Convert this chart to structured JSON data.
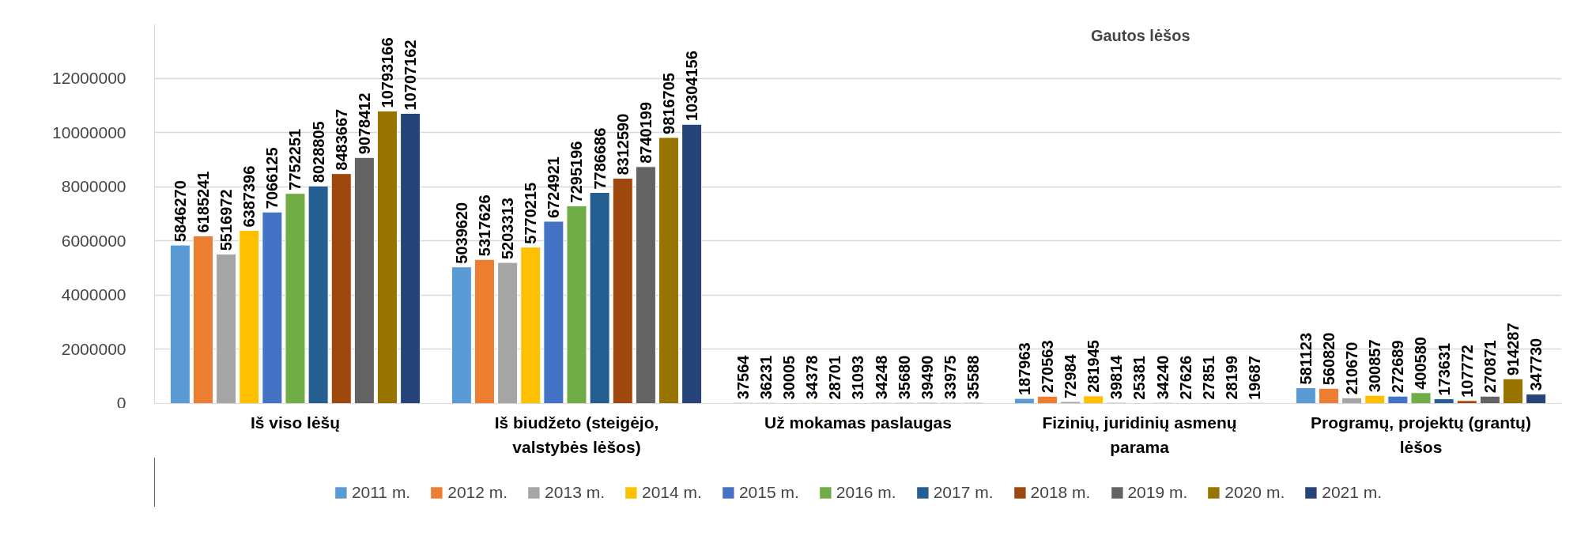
{
  "chart_data": {
    "type": "bar",
    "title": "Gautos lėšos",
    "categories": [
      "Iš viso lėšų",
      "Iš biudžeto (steigėjo, valstybės lėšos)",
      "Už mokamas paslaugas",
      "Fizinių, juridinių asmenų parama",
      "Programų, projektų (grantų) lėšos"
    ],
    "series": [
      {
        "name": "2011 m.",
        "color": "#5b9bd5",
        "values": [
          5846270,
          5039620,
          37564,
          187963,
          581123
        ]
      },
      {
        "name": "2012 m.",
        "color": "#ed7d31",
        "values": [
          6185241,
          5317626,
          36231,
          270563,
          560820
        ]
      },
      {
        "name": "2013 m.",
        "color": "#a5a5a5",
        "values": [
          5516972,
          5203313,
          30005,
          72984,
          210670
        ]
      },
      {
        "name": "2014 m.",
        "color": "#ffc000",
        "values": [
          6387396,
          5770215,
          34378,
          281945,
          300857
        ]
      },
      {
        "name": "2015 m.",
        "color": "#4472c4",
        "values": [
          7066125,
          6724921,
          28701,
          39814,
          272689
        ]
      },
      {
        "name": "2016 m.",
        "color": "#70ad47",
        "values": [
          7752251,
          7295196,
          31093,
          25381,
          400580
        ]
      },
      {
        "name": "2017 m.",
        "color": "#255e91",
        "values": [
          8028805,
          7786686,
          34248,
          34240,
          173631
        ]
      },
      {
        "name": "2018 m.",
        "color": "#9e480e",
        "values": [
          8483667,
          8312590,
          35680,
          27626,
          107772
        ]
      },
      {
        "name": "2019 m.",
        "color": "#636363",
        "values": [
          9078412,
          8740199,
          39490,
          27851,
          270871
        ]
      },
      {
        "name": "2020 m.",
        "color": "#997300",
        "values": [
          10793166,
          9816705,
          33975,
          28199,
          914287
        ]
      },
      {
        "name": "2021 m.",
        "color": "#264478",
        "values": [
          10707162,
          10304156,
          35588,
          19687,
          347730
        ]
      }
    ],
    "ylim": [
      0,
      14000000
    ],
    "yticks": [
      0,
      2000000,
      4000000,
      6000000,
      8000000,
      10000000,
      12000000
    ],
    "grid": "y",
    "legend": "bottom",
    "data_labels": true
  }
}
